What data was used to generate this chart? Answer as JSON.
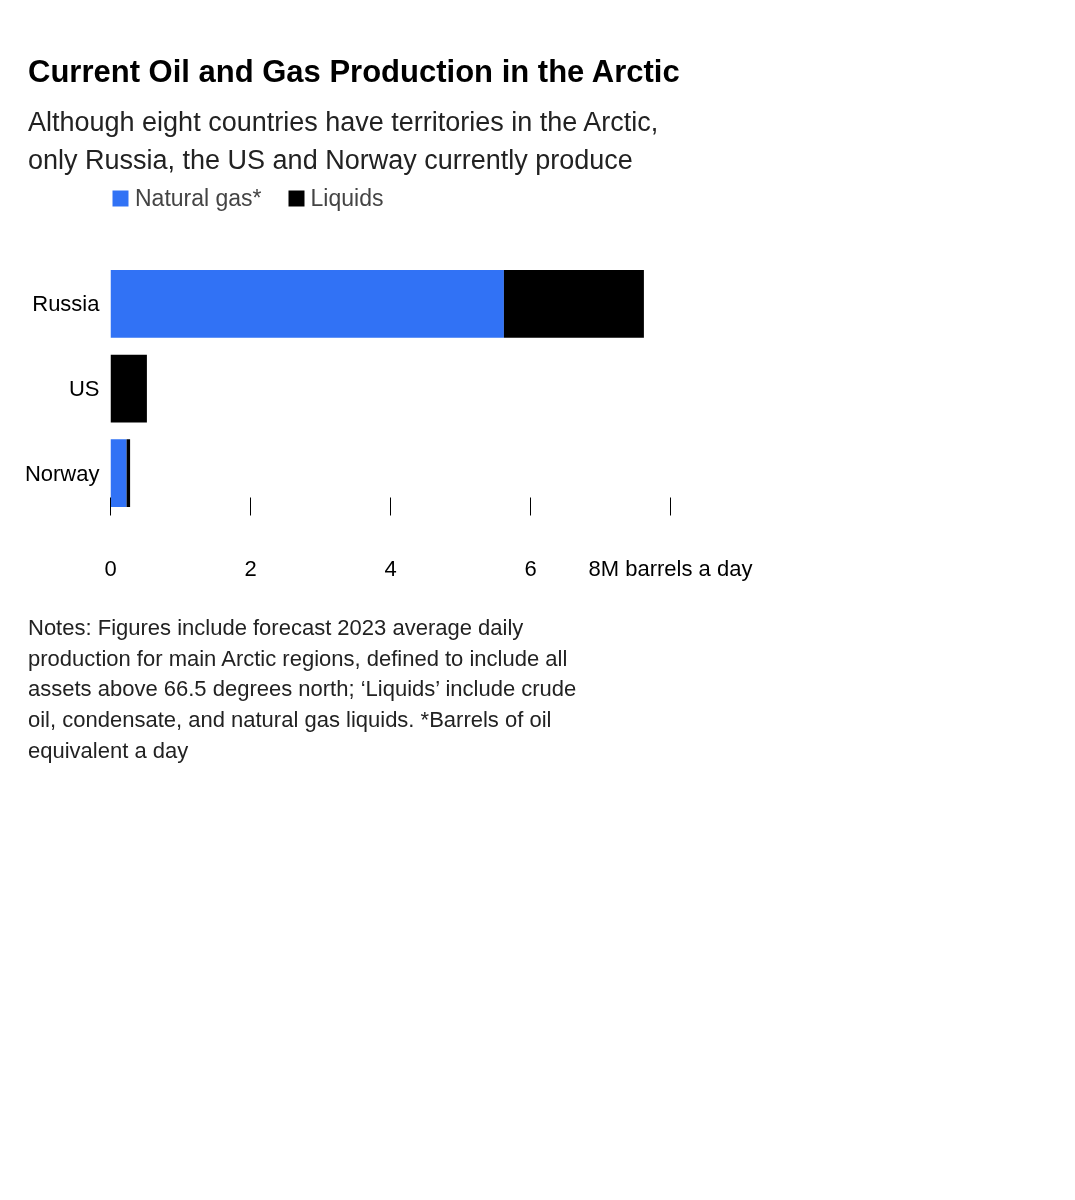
{
  "chart_data": {
    "type": "bar",
    "orientation": "horizontal",
    "stacked": true,
    "title": "Current Oil and Gas Production in the Arctic",
    "subtitle": "Although eight countries have territories in the Arctic, only Russia, the US and Norway currently produce",
    "categories": [
      "Russia",
      "US",
      "Norway"
    ],
    "series": [
      {
        "name": "Natural gas*",
        "color": "#3172f5",
        "values": [
          5.62,
          0,
          0.23
        ]
      },
      {
        "name": "Liquids",
        "color": "#000000",
        "values": [
          2.0,
          0.52,
          0.05
        ]
      }
    ],
    "xlim": [
      0,
      8
    ],
    "xticks": [
      0,
      2,
      4,
      6,
      {
        "value": 8,
        "label": "8M barrels a day"
      }
    ],
    "grid": false,
    "legend": "top left",
    "annotations": [
      "Notes: Figures include forecast 2023 average daily production for main Arctic regions, defined to include all assets above 66.5 degrees north; ‘Liquids’ include crude oil, condensate, and natural gas liquids. *Barrels of oil equivalent a day"
    ]
  }
}
